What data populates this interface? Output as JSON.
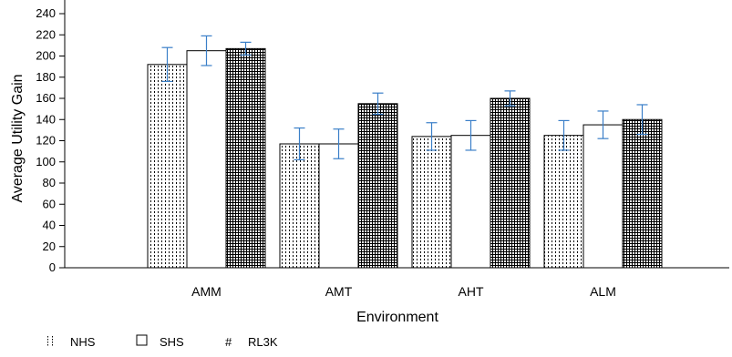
{
  "chart_data": {
    "type": "bar",
    "title": "",
    "xlabel": "Environment",
    "ylabel": "Average Utility Gain",
    "ylim": [
      0,
      240
    ],
    "yticks": [
      0,
      20,
      40,
      60,
      80,
      100,
      120,
      140,
      160,
      180,
      200,
      220,
      240
    ],
    "categories": [
      "AMM",
      "AMT",
      "AHT",
      "ALM"
    ],
    "series": [
      {
        "name": "NHS",
        "pattern": "dotted",
        "values": [
          192,
          117,
          124,
          125
        ],
        "errors": [
          16,
          15,
          13,
          14
        ]
      },
      {
        "name": "SHS",
        "pattern": "empty",
        "values": [
          205,
          117,
          125,
          135
        ],
        "errors": [
          14,
          14,
          14,
          13
        ]
      },
      {
        "name": "RL3K",
        "pattern": "grid",
        "values": [
          207,
          155,
          160,
          140
        ],
        "errors": [
          6,
          10,
          7,
          14
        ]
      }
    ],
    "legend_position": "bottom-left",
    "grid": false,
    "colors": {
      "bar_stroke": "#000000",
      "error_bar": "#3a7fc8",
      "pattern": "#000000"
    }
  }
}
